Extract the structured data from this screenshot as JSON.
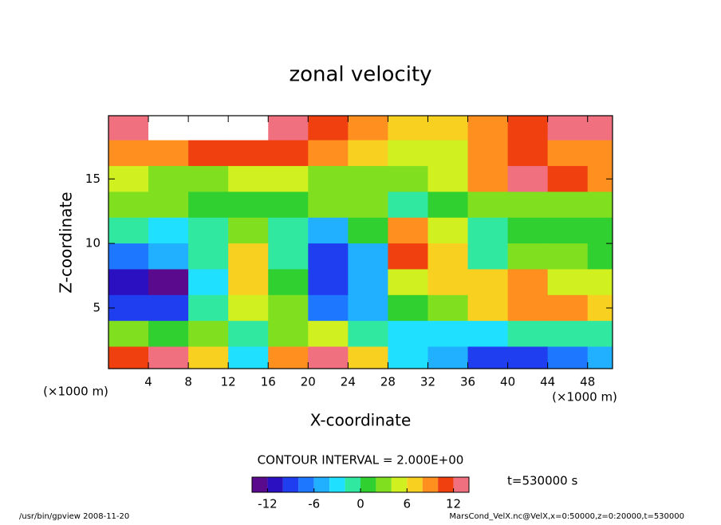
{
  "chart_data": {
    "type": "contour",
    "title": "zonal velocity",
    "x_label": "X-coordinate",
    "y_label": "Z-coordinate",
    "x_unit": "(×1000 m)",
    "y_unit": "(×1000 m)",
    "xlim": [
      0,
      50.5
    ],
    "ylim": [
      0.3,
      19.9
    ],
    "xticks": [
      4,
      8,
      12,
      16,
      20,
      24,
      28,
      32,
      36,
      40,
      44,
      48
    ],
    "yticks": [
      5,
      10,
      15
    ],
    "x": [
      2,
      6,
      10,
      14,
      18,
      22,
      26,
      30,
      34,
      38,
      42,
      46,
      50
    ],
    "y": [
      19,
      17,
      15,
      13,
      11,
      9,
      7,
      5,
      3,
      1
    ],
    "values": [
      [
        12,
        14,
        14,
        14,
        12,
        10,
        8,
        6,
        6,
        8,
        10,
        12,
        12
      ],
      [
        8,
        8,
        10,
        10,
        10,
        8,
        6,
        4,
        4,
        8,
        10,
        8,
        8
      ],
      [
        4,
        2,
        2,
        4,
        4,
        2,
        2,
        2,
        4,
        8,
        12,
        10,
        8
      ],
      [
        2,
        2,
        0,
        0,
        0,
        2,
        2,
        -2,
        0,
        2,
        2,
        2,
        2
      ],
      [
        -2,
        -4,
        -2,
        2,
        -2,
        -6,
        0,
        8,
        4,
        -2,
        0,
        0,
        0
      ],
      [
        -8,
        -6,
        -2,
        6,
        -2,
        -10,
        -6,
        10,
        6,
        -2,
        2,
        2,
        0
      ],
      [
        -12,
        -14,
        -4,
        6,
        0,
        -10,
        -6,
        4,
        6,
        6,
        8,
        4,
        4
      ],
      [
        -10,
        -10,
        -2,
        4,
        2,
        -8,
        -6,
        0,
        2,
        6,
        8,
        8,
        6
      ],
      [
        2,
        0,
        2,
        -2,
        2,
        4,
        -2,
        -4,
        -4,
        -4,
        -2,
        -2,
        -2
      ],
      [
        10,
        12,
        6,
        -4,
        8,
        12,
        6,
        -4,
        -6,
        -10,
        -10,
        -8,
        -6
      ]
    ],
    "colorbar": {
      "levels": [
        -14,
        -12,
        -10,
        -8,
        -6,
        -4,
        -2,
        0,
        2,
        4,
        6,
        8,
        10,
        12,
        14
      ],
      "colors": [
        "#5a0a8c",
        "#2a10c0",
        "#1f3ef0",
        "#1e78ff",
        "#20b0ff",
        "#20e0ff",
        "#30e8a0",
        "#30d030",
        "#80e020",
        "#d0f020",
        "#f8d020",
        "#ff9020",
        "#f04010",
        "#f07080"
      ],
      "ticks": [
        -12,
        -6,
        0,
        6,
        12
      ]
    },
    "contour_interval": "CONTOUR INTERVAL = 2.000E+00",
    "time_label": "t=530000 s",
    "footer_left": "/usr/bin/gpview  2008-11-20",
    "footer_right": "MarsCond_VelX.nc@VelX,x=0:50000,z=0:20000,t=530000"
  }
}
